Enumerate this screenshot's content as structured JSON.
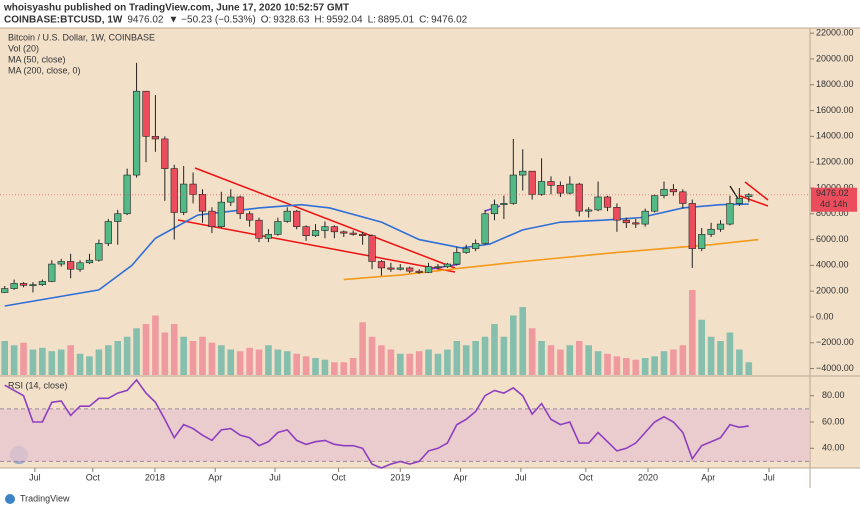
{
  "header": {
    "author_line": "whoisyashu published on TradingView.com, June 17, 2020 10:52:57 GMT",
    "symbol": "COINBASE:BTCUSD, 1W",
    "change": "▼ −50.23 (−0.53%)",
    "ohlc_labels": [
      "O:",
      "H:",
      "L:",
      "C:"
    ]
  },
  "footer": {
    "brand": "TradingView"
  },
  "chart_data": {
    "type": "candlestick",
    "title": "Bitcoin / U.S. Dollar, 1W, COINBASE",
    "countdown": "4d 14h",
    "up_color": "#53b987",
    "down_color": "#eb4d5c",
    "volume_up_color": "#86bfae",
    "volume_down_color": "#ef9a9f",
    "x": [
      0,
      2,
      4,
      6,
      8,
      10,
      12,
      14,
      16,
      18,
      20,
      22,
      24,
      26,
      28,
      30,
      32,
      34,
      36,
      38,
      40,
      42,
      44,
      46,
      48,
      50,
      52,
      54,
      56,
      58,
      60,
      62,
      64,
      66,
      68,
      70,
      72,
      74,
      76,
      78,
      80,
      82,
      84,
      86,
      88,
      90,
      92,
      94,
      96,
      98,
      100,
      102,
      104,
      106,
      108,
      110,
      112,
      114,
      116,
      118,
      120,
      122,
      124,
      126,
      128,
      130,
      132,
      134,
      136,
      138,
      140,
      142,
      144,
      146,
      148,
      150,
      152,
      154,
      156,
      158
    ],
    "open": [
      1900,
      2200,
      2600,
      2450,
      2500,
      2750,
      4100,
      4300,
      3700,
      4200,
      4400,
      5700,
      7400,
      8000,
      11000,
      17500,
      14000,
      13800,
      11500,
      8100,
      10300,
      9500,
      8200,
      7000,
      8900,
      9300,
      8000,
      7500,
      6100,
      6400,
      7400,
      8200,
      7000,
      6300,
      6700,
      7000,
      6600,
      6500,
      6400,
      6300,
      4300,
      3800,
      3700,
      3800,
      3550,
      3450,
      3900,
      3900,
      4100,
      5000,
      5300,
      5700,
      8000,
      8700,
      8800,
      11000,
      11300,
      9500,
      10500,
      10200,
      9600,
      10300,
      8200,
      8300,
      9300,
      8500,
      7500,
      7300,
      7200,
      8200,
      9400,
      9900,
      9700,
      8800,
      5300,
      6400,
      6800,
      7200,
      8800,
      9328.63
    ],
    "high": [
      2400,
      2900,
      2700,
      2700,
      2900,
      4400,
      4500,
      4900,
      4400,
      4900,
      6000,
      7600,
      8300,
      11500,
      19700,
      17300,
      17200,
      14000,
      11800,
      11700,
      11200,
      9900,
      8500,
      9700,
      9900,
      9400,
      8200,
      7700,
      6800,
      7700,
      8500,
      8300,
      7100,
      7200,
      7400,
      7100,
      6700,
      6700,
      6600,
      6400,
      4400,
      4200,
      4100,
      3900,
      3700,
      4200,
      4100,
      4200,
      5400,
      5600,
      6000,
      8300,
      9100,
      9400,
      13800,
      13000,
      11300,
      12300,
      10900,
      10500,
      10900,
      10400,
      8500,
      10500,
      9400,
      8800,
      7700,
      7600,
      8400,
      9500,
      10500,
      10300,
      9900,
      9100,
      6900,
      7300,
      7500,
      9400,
      10000,
      9592.04
    ],
    "low": [
      1850,
      2100,
      2300,
      1900,
      2400,
      2700,
      3900,
      3000,
      3500,
      4100,
      4300,
      5500,
      5600,
      7900,
      10800,
      12000,
      12800,
      9000,
      6000,
      7900,
      8800,
      7300,
      6500,
      6900,
      8600,
      7600,
      7000,
      5800,
      5800,
      6300,
      7300,
      6800,
      5900,
      6200,
      6100,
      6100,
      6200,
      6300,
      5600,
      3700,
      3200,
      3500,
      3600,
      3400,
      3350,
      3400,
      3700,
      3800,
      4000,
      4900,
      5100,
      5600,
      7500,
      7600,
      8700,
      9800,
      9100,
      9400,
      9500,
      9300,
      9500,
      7800,
      7700,
      8200,
      8200,
      6600,
      6900,
      6900,
      7000,
      8100,
      9200,
      9400,
      8400,
      3800,
      5100,
      6200,
      6600,
      7100,
      8600,
      8895.01
    ],
    "close": [
      2200,
      2600,
      2450,
      2500,
      2750,
      4100,
      4300,
      3700,
      4200,
      4400,
      5700,
      7400,
      8000,
      11000,
      17500,
      14000,
      13800,
      11500,
      8100,
      10300,
      9500,
      8200,
      7000,
      8900,
      9300,
      8000,
      7500,
      6100,
      6400,
      7400,
      8200,
      7000,
      6300,
      6700,
      7000,
      6600,
      6500,
      6400,
      6300,
      4300,
      3800,
      3700,
      3800,
      3550,
      3450,
      3900,
      3900,
      4100,
      5000,
      5300,
      5700,
      8000,
      8700,
      8800,
      11000,
      11300,
      9500,
      10500,
      10200,
      9600,
      10300,
      8200,
      8300,
      9300,
      8500,
      7500,
      7300,
      7200,
      8200,
      9400,
      9900,
      9700,
      8800,
      5300,
      6400,
      6800,
      7200,
      8800,
      9200,
      9476.02
    ],
    "volume": {
      "name": "Vol (20)",
      "values": [
        40,
        35,
        38,
        30,
        32,
        28,
        30,
        35,
        25,
        22,
        30,
        35,
        40,
        45,
        55,
        60,
        70,
        50,
        60,
        45,
        40,
        45,
        38,
        35,
        30,
        28,
        32,
        30,
        35,
        30,
        28,
        25,
        22,
        20,
        18,
        15,
        15,
        20,
        62,
        45,
        35,
        30,
        25,
        25,
        28,
        30,
        25,
        30,
        40,
        35,
        40,
        45,
        60,
        45,
        70,
        80,
        55,
        40,
        35,
        30,
        35,
        40,
        35,
        28,
        25,
        22,
        20,
        18,
        20,
        22,
        28,
        30,
        35,
        100,
        65,
        45,
        40,
        50,
        30,
        15
      ]
    },
    "overlays": [
      {
        "name": "MA (50, close)",
        "color": "#2f6fd6",
        "x": [
          0,
          20,
          27,
          32,
          41,
          54,
          63,
          69,
          80,
          88,
          97,
          103,
          110,
          118,
          127,
          135,
          144,
          152,
          158
        ],
        "values": [
          850,
          2100,
          4000,
          6100,
          7900,
          8450,
          8700,
          8450,
          7350,
          6000,
          5350,
          5650,
          6750,
          7350,
          7500,
          7700,
          8450,
          8700,
          8750
        ]
      },
      {
        "name": "MA (200, close, 0)",
        "color": "#f59a1b",
        "x": [
          72,
          84,
          96,
          110,
          130,
          150,
          160
        ],
        "values": [
          2900,
          3250,
          3750,
          4300,
          5000,
          5600,
          6000
        ]
      }
    ],
    "xlim": [
      -1,
      171
    ],
    "ylim": [
      -4500,
      22400
    ],
    "yticks": [
      {
        "value": 22000,
        "label": "22000.00"
      },
      {
        "value": 20000,
        "label": "20000.00"
      },
      {
        "value": 18000,
        "label": "18000.00"
      },
      {
        "value": 16000,
        "label": "16000.00"
      },
      {
        "value": 14000,
        "label": "14000.00"
      },
      {
        "value": 12000,
        "label": "12000.00"
      },
      {
        "value": 10000,
        "label": "10000.00"
      },
      {
        "value": 8000,
        "label": "8000.00"
      },
      {
        "value": 6000,
        "label": "6000.00"
      },
      {
        "value": 4000,
        "label": "4000.00"
      },
      {
        "value": 2000,
        "label": "2000.00"
      },
      {
        "value": 0,
        "label": "0.00"
      },
      {
        "value": -2000,
        "label": "−2000.00"
      },
      {
        "value": -4000,
        "label": "−4000.00"
      }
    ],
    "xticks": [
      {
        "value": 6.4,
        "label": "Jul"
      },
      {
        "value": 18.7,
        "label": "Oct"
      },
      {
        "value": 31.9,
        "label": "2018"
      },
      {
        "value": 44.7,
        "label": "Apr"
      },
      {
        "value": 57.4,
        "label": "Jul"
      },
      {
        "value": 70.9,
        "label": "Oct"
      },
      {
        "value": 84,
        "label": "2019"
      },
      {
        "value": 96.8,
        "label": "Apr"
      },
      {
        "value": 109.6,
        "label": "Jul"
      },
      {
        "value": 123.4,
        "label": "Oct"
      },
      {
        "value": 136.6,
        "label": "2020"
      },
      {
        "value": 149.4,
        "label": "Apr"
      },
      {
        "value": 162.3,
        "label": "Jul"
      }
    ],
    "rsi": {
      "name": "RSI (14, close)",
      "color": "#8e3fbf",
      "band": [
        30,
        70
      ],
      "ylim": [
        25,
        95
      ],
      "yticks": [
        {
          "value": 80,
          "label": "80.00"
        },
        {
          "value": 60,
          "label": "60.00"
        },
        {
          "value": 40,
          "label": "40.00"
        }
      ],
      "values": [
        88,
        84,
        80,
        60,
        60,
        75,
        76,
        65,
        72,
        72,
        78,
        78,
        82,
        84,
        92,
        82,
        75,
        62,
        48,
        58,
        55,
        50,
        46,
        54,
        55,
        50,
        48,
        42,
        45,
        52,
        54,
        46,
        43,
        45,
        46,
        43,
        42,
        42,
        40,
        28,
        25,
        28,
        30,
        28,
        30,
        38,
        40,
        44,
        58,
        62,
        68,
        80,
        84,
        82,
        86,
        80,
        66,
        74,
        62,
        58,
        60,
        44,
        44,
        52,
        45,
        38,
        40,
        44,
        52,
        60,
        64,
        60,
        52,
        32,
        42,
        45,
        48,
        58,
        56,
        57
      ]
    }
  }
}
